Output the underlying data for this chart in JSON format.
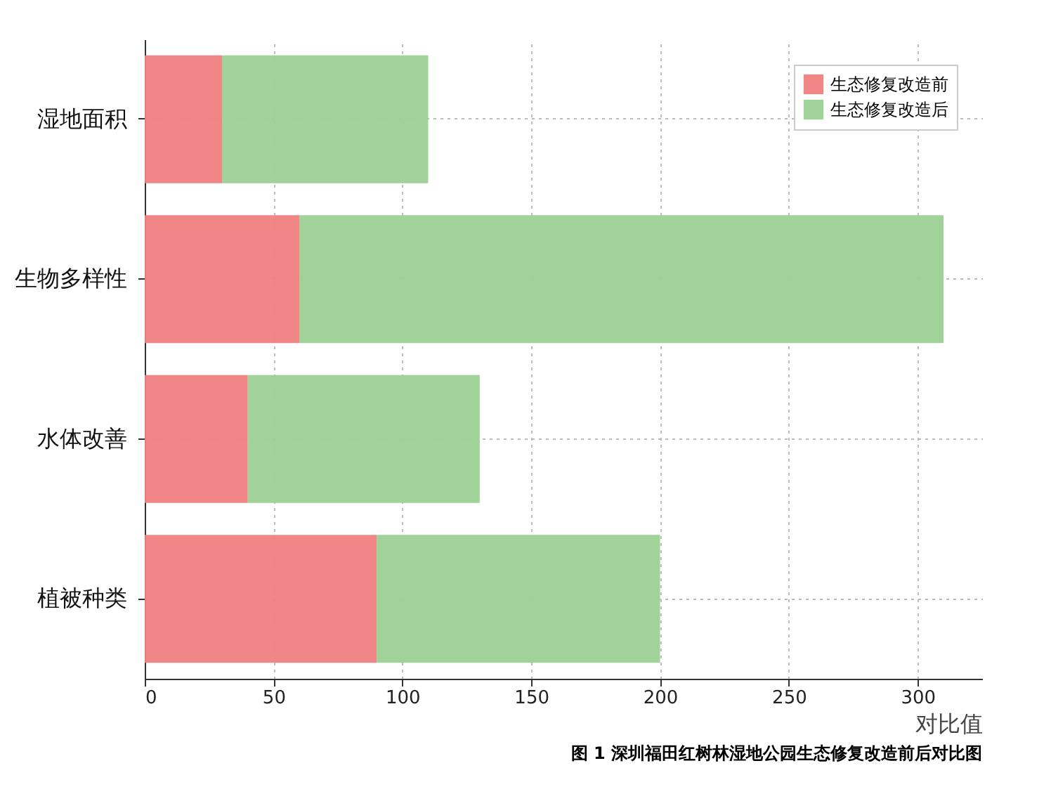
{
  "chart_data": {
    "type": "bar",
    "orientation": "horizontal",
    "stacked": true,
    "categories": [
      "湿地面积",
      "生物多样性",
      "水体改善",
      "植被种类"
    ],
    "series": [
      {
        "name": "生态修复改造前",
        "color": "#ef7f7f",
        "values": [
          30,
          60,
          40,
          90
        ]
      },
      {
        "name": "生态修复改造后",
        "color": "#9bd093",
        "values": [
          80,
          250,
          90,
          110
        ]
      }
    ],
    "xlim": [
      0,
      325
    ],
    "xticks": [
      0,
      50,
      100,
      150,
      200,
      250,
      300
    ],
    "xlabel": "对比值",
    "grid": true,
    "legend": "top right",
    "annotations": [
      "图 1  深圳福田红树林湿地公园生态修复改造前后对比图"
    ]
  }
}
